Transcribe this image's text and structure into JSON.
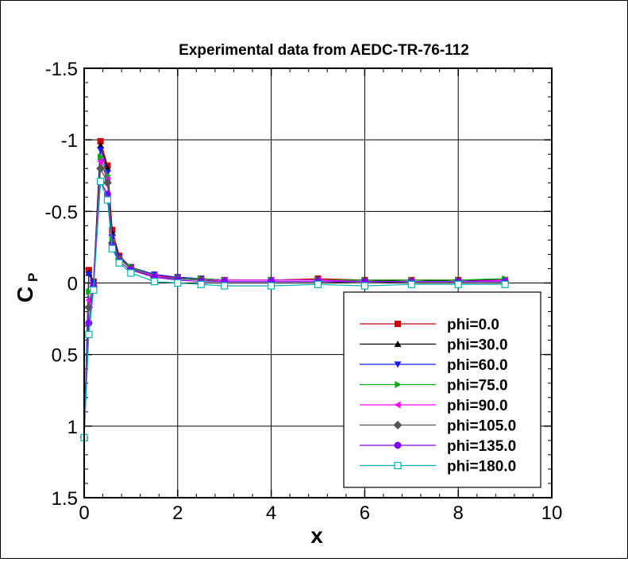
{
  "chart_data": {
    "type": "line",
    "title": "Experimental data from AEDC-TR-76-112",
    "xlabel": "x",
    "ylabel_main": "C",
    "ylabel_sub": "P",
    "xlim": [
      0,
      10
    ],
    "ylim": [
      1.5,
      -1.5
    ],
    "y_inverted": true,
    "grid": true,
    "legend_position": "bottom-right",
    "xticks": [
      0,
      2,
      4,
      6,
      8,
      10
    ],
    "xtick_labels": [
      "0",
      "2",
      "4",
      "6",
      "8",
      "10"
    ],
    "yticks": [
      -1.5,
      -1,
      -0.5,
      0,
      0.5,
      1,
      1.5
    ],
    "ytick_labels": [
      "-1.5",
      "-1",
      "-0.5",
      "0",
      "0.5",
      "1",
      "1.5"
    ],
    "series": [
      {
        "name": "phi=0.0",
        "color": "#cc0000",
        "marker": "square-filled",
        "x": [
          0,
          0.1,
          0.2,
          0.35,
          0.5,
          0.6,
          0.75,
          1.0,
          1.5,
          2.0,
          2.5,
          3.0,
          4.0,
          5.0,
          6.0,
          7.0,
          8.0,
          9.0
        ],
        "y": [
          1.08,
          -0.09,
          -0.01,
          -0.99,
          -0.82,
          -0.37,
          -0.19,
          -0.11,
          -0.05,
          -0.04,
          -0.03,
          -0.02,
          -0.02,
          -0.03,
          -0.02,
          -0.02,
          -0.02,
          -0.02
        ]
      },
      {
        "name": "phi=30.0",
        "color": "#000000",
        "marker": "triangle-up-filled",
        "x": [
          0,
          0.1,
          0.2,
          0.35,
          0.5,
          0.6,
          0.75,
          1.0,
          1.5,
          2.0,
          2.5,
          3.0,
          4.0,
          5.0,
          6.0,
          7.0,
          8.0,
          9.0
        ],
        "y": [
          1.08,
          -0.07,
          0.0,
          -0.96,
          -0.8,
          -0.35,
          -0.18,
          -0.11,
          -0.06,
          -0.04,
          -0.03,
          -0.02,
          -0.02,
          -0.02,
          -0.02,
          -0.01,
          -0.02,
          -0.02
        ]
      },
      {
        "name": "phi=60.0",
        "color": "#1a1aff",
        "marker": "triangle-down-filled",
        "x": [
          0,
          0.1,
          0.2,
          0.35,
          0.5,
          0.6,
          0.75,
          1.0,
          1.5,
          2.0,
          2.5,
          3.0,
          4.0,
          5.0,
          6.0,
          7.0,
          8.0,
          9.0
        ],
        "y": [
          1.08,
          -0.06,
          0.0,
          -0.93,
          -0.77,
          -0.32,
          -0.18,
          -0.11,
          -0.06,
          -0.04,
          -0.03,
          -0.02,
          -0.02,
          -0.02,
          -0.01,
          -0.01,
          -0.01,
          -0.02
        ]
      },
      {
        "name": "phi=75.0",
        "color": "#00aa00",
        "marker": "triangle-right-filled",
        "x": [
          0,
          0.1,
          0.2,
          0.35,
          0.5,
          0.6,
          0.75,
          1.0,
          1.5,
          2.0,
          2.5,
          3.0,
          4.0,
          5.0,
          6.0,
          7.0,
          8.0,
          9.0
        ],
        "y": [
          1.08,
          0.06,
          0.02,
          -0.88,
          -0.75,
          -0.3,
          -0.17,
          -0.11,
          -0.05,
          -0.03,
          -0.03,
          -0.02,
          -0.02,
          -0.02,
          -0.02,
          -0.02,
          -0.02,
          -0.03
        ]
      },
      {
        "name": "phi=90.0",
        "color": "#ff00ff",
        "marker": "triangle-left-filled",
        "x": [
          0,
          0.1,
          0.2,
          0.35,
          0.5,
          0.6,
          0.75,
          1.0,
          1.5,
          2.0,
          2.5,
          3.0,
          4.0,
          5.0,
          6.0,
          7.0,
          8.0,
          9.0
        ],
        "y": [
          1.08,
          0.12,
          0.02,
          -0.85,
          -0.72,
          -0.29,
          -0.17,
          -0.1,
          -0.05,
          -0.03,
          -0.02,
          -0.02,
          -0.02,
          -0.02,
          -0.01,
          -0.01,
          -0.01,
          -0.02
        ]
      },
      {
        "name": "phi=105.0",
        "color": "#555555",
        "marker": "diamond-filled",
        "x": [
          0,
          0.1,
          0.2,
          0.35,
          0.5,
          0.6,
          0.75,
          1.0,
          1.5,
          2.0,
          2.5,
          3.0,
          4.0,
          5.0,
          6.0,
          7.0,
          8.0,
          9.0
        ],
        "y": [
          1.08,
          0.17,
          0.03,
          -0.8,
          -0.7,
          -0.28,
          -0.17,
          -0.1,
          -0.04,
          -0.03,
          -0.02,
          -0.01,
          -0.01,
          -0.01,
          0.0,
          -0.01,
          -0.01,
          -0.01
        ]
      },
      {
        "name": "phi=135.0",
        "color": "#8000ff",
        "marker": "circle-filled",
        "x": [
          0,
          0.1,
          0.2,
          0.35,
          0.5,
          0.6,
          0.75,
          1.0,
          1.5,
          2.0,
          2.5,
          3.0,
          4.0,
          5.0,
          6.0,
          7.0,
          8.0,
          9.0
        ],
        "y": [
          1.08,
          0.28,
          0.02,
          -0.71,
          -0.62,
          -0.26,
          -0.15,
          -0.09,
          -0.04,
          -0.02,
          -0.01,
          -0.01,
          -0.01,
          -0.01,
          -0.01,
          -0.01,
          -0.01,
          -0.01
        ]
      },
      {
        "name": "phi=180.0",
        "color": "#00b0b0",
        "marker": "square-open",
        "x": [
          0,
          0.1,
          0.2,
          0.35,
          0.5,
          0.6,
          0.75,
          1.0,
          1.5,
          2.0,
          2.5,
          3.0,
          4.0,
          5.0,
          6.0,
          7.0,
          8.0,
          9.0
        ],
        "y": [
          1.08,
          0.36,
          0.05,
          -0.71,
          -0.58,
          -0.24,
          -0.14,
          -0.07,
          -0.01,
          0.0,
          0.01,
          0.02,
          0.02,
          0.01,
          0.02,
          0.01,
          0.01,
          0.01
        ]
      }
    ]
  }
}
